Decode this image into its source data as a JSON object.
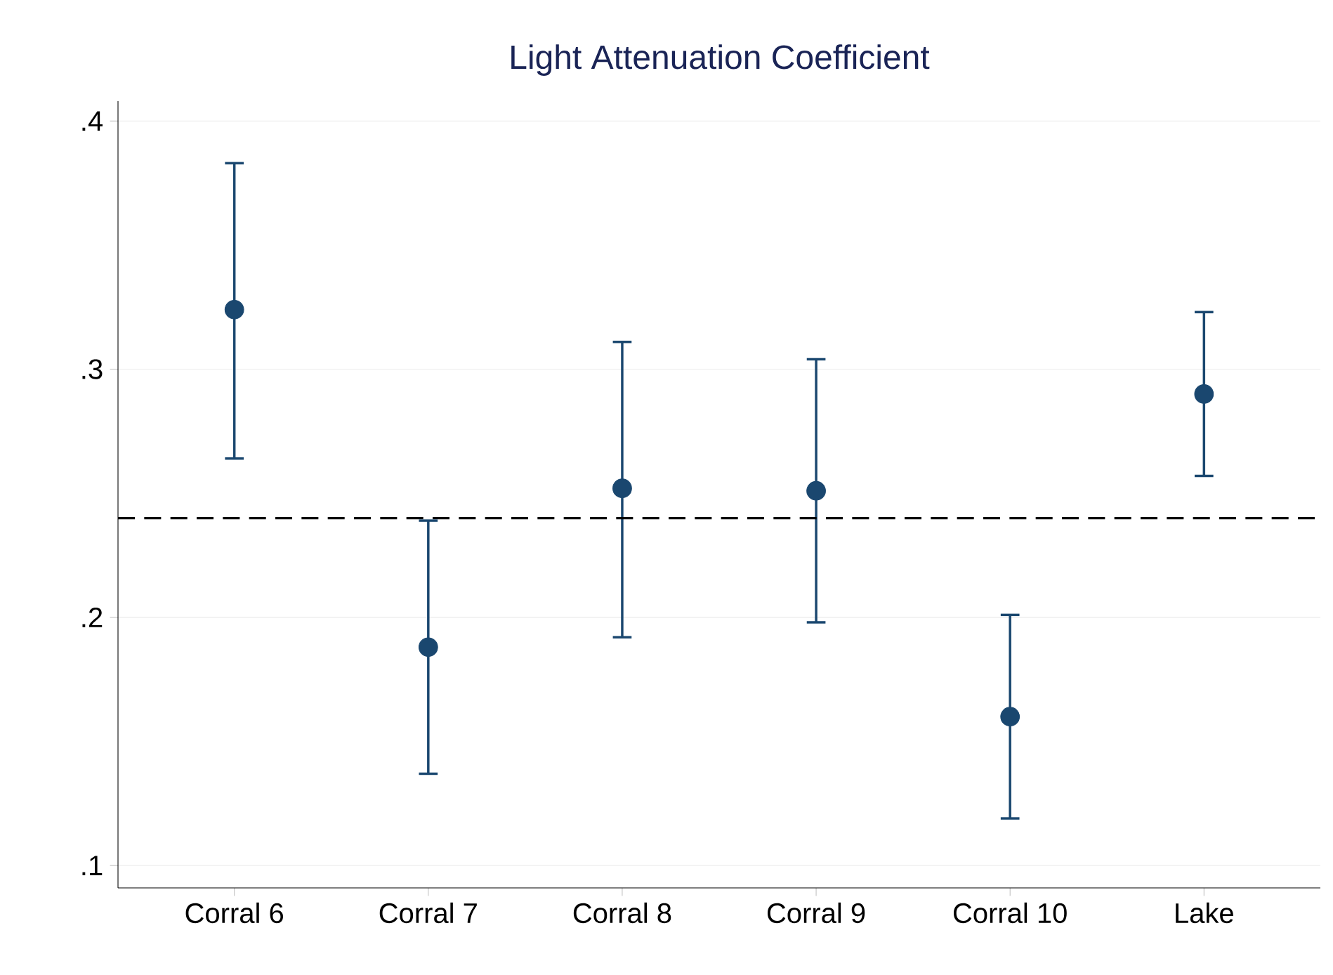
{
  "chart_data": {
    "type": "scatter",
    "title": "Light Attenuation Coefficient",
    "categories": [
      "Corral 6",
      "Corral 7",
      "Corral 8",
      "Corral 9",
      "Corral 10",
      "Lake"
    ],
    "series": [
      {
        "color": "#1a476f",
        "values": [
          0.324,
          0.188,
          0.252,
          0.251,
          0.16,
          0.29
        ],
        "errors": [
          [
            0.264,
            0.383
          ],
          [
            0.137,
            0.239
          ],
          [
            0.192,
            0.311
          ],
          [
            0.198,
            0.304
          ],
          [
            0.119,
            0.201
          ],
          [
            0.257,
            0.323
          ]
        ]
      }
    ],
    "ylim": [
      0.091,
      0.408
    ],
    "yticks": [
      {
        "value": 0.1,
        "label": ".1"
      },
      {
        "value": 0.2,
        "label": ".2"
      },
      {
        "value": 0.3,
        "label": ".3"
      },
      {
        "value": 0.4,
        "label": ".4"
      }
    ],
    "grid": "y",
    "marker": "circle",
    "ref_lines": [
      {
        "axis": "y",
        "value": 0.24,
        "color": "#000000",
        "line_style": "dashed"
      }
    ]
  }
}
